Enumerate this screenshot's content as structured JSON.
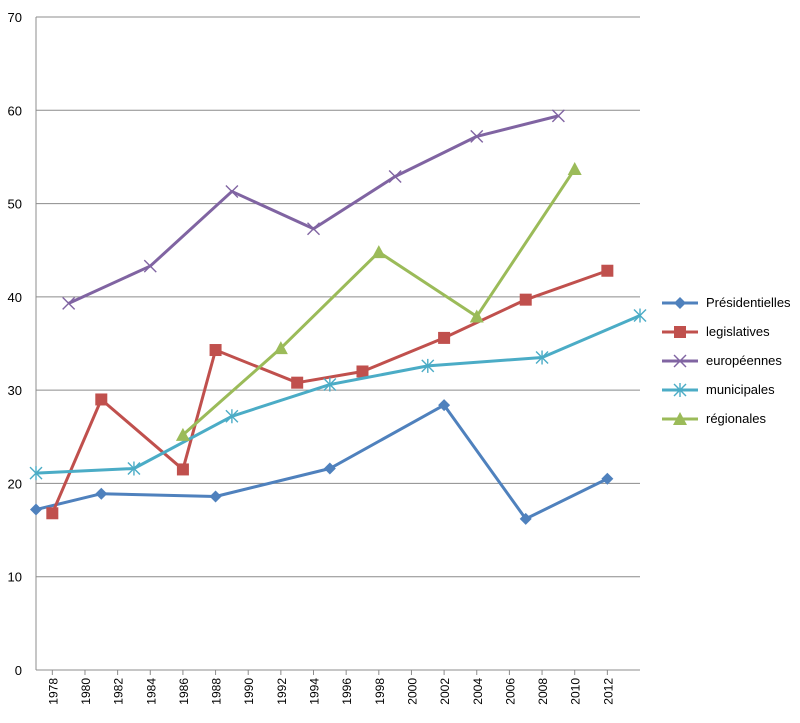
{
  "chart_data": {
    "type": "line",
    "title": "",
    "xlabel": "",
    "ylabel": "",
    "ylim": [
      0,
      70
    ],
    "yticks": [
      0,
      10,
      20,
      30,
      40,
      50,
      60,
      70
    ],
    "xlim": [
      1977,
      2014
    ],
    "xticks": [
      "1978",
      "1980",
      "1982",
      "1984",
      "1986",
      "1988",
      "1990",
      "1992",
      "1994",
      "1996",
      "1998",
      "2000",
      "2002",
      "2004",
      "2006",
      "2008",
      "2010",
      "2012"
    ],
    "grid": "horizontal",
    "legend": "right",
    "series": [
      {
        "name": "Présidentielles",
        "color": "#4F81BD",
        "marker": "diamond",
        "points": [
          [
            1977,
            17.2
          ],
          [
            1981,
            18.9
          ],
          [
            1988,
            18.6
          ],
          [
            1995,
            21.6
          ],
          [
            2002,
            28.4
          ],
          [
            2007,
            16.2
          ],
          [
            2012,
            20.5
          ]
        ]
      },
      {
        "name": "legislatives",
        "color": "#C0504D",
        "marker": "square",
        "points": [
          [
            1978,
            16.8
          ],
          [
            1981,
            29.0
          ],
          [
            1986,
            21.5
          ],
          [
            1988,
            34.3
          ],
          [
            1993,
            30.8
          ],
          [
            1997,
            32.0
          ],
          [
            2002,
            35.6
          ],
          [
            2007,
            39.7
          ],
          [
            2012,
            42.8
          ]
        ]
      },
      {
        "name": "européennes",
        "color": "#8064A2",
        "marker": "x",
        "points": [
          [
            1979,
            39.3
          ],
          [
            1984,
            43.3
          ],
          [
            1989,
            51.3
          ],
          [
            1994,
            47.3
          ],
          [
            1999,
            52.9
          ],
          [
            2004,
            57.2
          ],
          [
            2009,
            59.4
          ]
        ]
      },
      {
        "name": "municipales",
        "color": "#4BACC6",
        "marker": "star",
        "points": [
          [
            1977,
            21.1
          ],
          [
            1983,
            21.6
          ],
          [
            1989,
            27.2
          ],
          [
            1995,
            30.6
          ],
          [
            2001,
            32.6
          ],
          [
            2008,
            33.5
          ],
          [
            2014,
            38.0
          ]
        ]
      },
      {
        "name": "régionales",
        "color": "#9BBB59",
        "marker": "triangle",
        "points": [
          [
            1986,
            25.2
          ],
          [
            1992,
            34.5
          ],
          [
            1998,
            44.8
          ],
          [
            2004,
            37.9
          ],
          [
            2010,
            53.7
          ]
        ]
      }
    ]
  }
}
